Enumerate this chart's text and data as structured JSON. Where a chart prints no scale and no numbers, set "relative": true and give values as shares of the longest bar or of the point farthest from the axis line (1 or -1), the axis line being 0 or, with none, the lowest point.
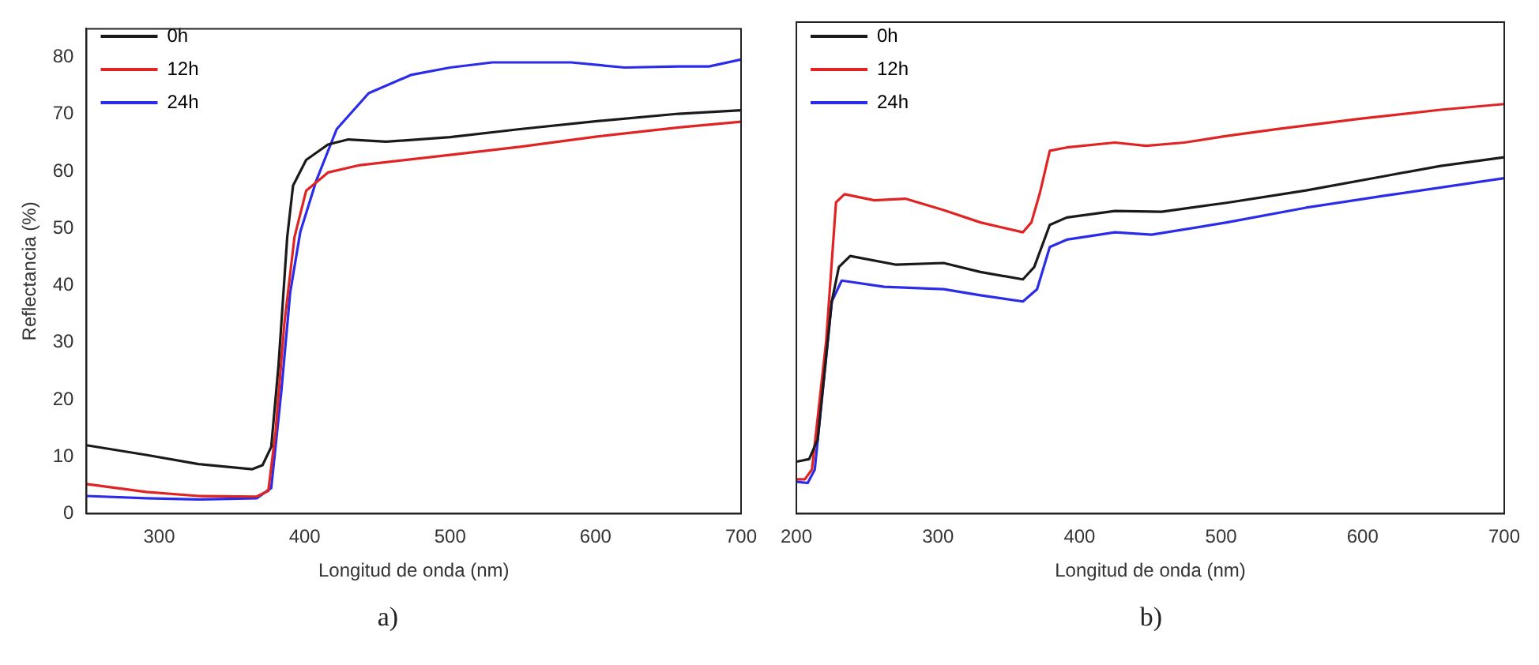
{
  "chart_data": [
    {
      "type": "line",
      "xlabel": "Longitud de onda (nm)",
      "ylabel": "Reflectancia (%)",
      "xlim": [
        250,
        700
      ],
      "xticks": [
        300,
        400,
        500,
        600,
        700
      ],
      "ylim": [
        0,
        85
      ],
      "yticks": [
        0,
        10,
        20,
        30,
        40,
        50,
        60,
        70,
        80
      ],
      "legend": "top left",
      "grid": false,
      "annotations": [
        "a)"
      ],
      "series": [
        {
          "name": "0h",
          "color": "#1a1a1a",
          "x": [
            250,
            291,
            327,
            364,
            371,
            377,
            382,
            388,
            392,
            401,
            416,
            430,
            456,
            500,
            548,
            601,
            657,
            700
          ],
          "values": [
            12,
            10.3,
            8.7,
            7.8,
            8.5,
            11.7,
            26,
            48.5,
            57.5,
            62,
            64.7,
            65.6,
            65.2,
            66,
            67.4,
            68.8,
            70.1,
            70.7
          ]
        },
        {
          "name": "12h",
          "color": "#e02424",
          "x": [
            250,
            291,
            327,
            367,
            375,
            380,
            386,
            393,
            401,
            416,
            438,
            500,
            548,
            601,
            657,
            700
          ],
          "values": [
            5.2,
            3.8,
            3.1,
            3,
            4,
            14.4,
            33.3,
            48.5,
            56.6,
            59.8,
            61.1,
            62.9,
            64.3,
            66.1,
            67.7,
            68.7
          ]
        },
        {
          "name": "24h",
          "color": "#2b2bea",
          "x": [
            250,
            291,
            327,
            367,
            377,
            384,
            390,
            397,
            408,
            422,
            444,
            473,
            500,
            529,
            583,
            620,
            657,
            678,
            700
          ],
          "values": [
            3.1,
            2.7,
            2.5,
            2.7,
            4.5,
            21.6,
            38.7,
            49.4,
            58.4,
            67.4,
            73.7,
            76.9,
            78.2,
            79.1,
            79.1,
            78.2,
            78.4,
            78.4,
            79.6
          ]
        }
      ]
    },
    {
      "type": "line",
      "xlabel": "Longitud de onda (nm)",
      "xlim": [
        200,
        700
      ],
      "xticks": [
        200,
        300,
        400,
        500,
        600,
        700
      ],
      "relative": true,
      "tick_labels": "x",
      "legend": "top left",
      "grid": false,
      "annotations": [
        "b)"
      ],
      "series": [
        {
          "name": "0h",
          "color": "#1a1a1a",
          "x": [
            200,
            209,
            215,
            225,
            230,
            238,
            270,
            304,
            330,
            360,
            368,
            379,
            391,
            425,
            458,
            504,
            560,
            617,
            655,
            700
          ],
          "values": [
            0.127,
            0.133,
            0.181,
            0.518,
            0.602,
            0.629,
            0.608,
            0.612,
            0.59,
            0.572,
            0.602,
            0.705,
            0.723,
            0.739,
            0.737,
            0.759,
            0.789,
            0.825,
            0.849,
            0.87
          ]
        },
        {
          "name": "12h",
          "color": "#e02424",
          "x": [
            200,
            206,
            211,
            221,
            228,
            234,
            255,
            277,
            304,
            330,
            360,
            366,
            372,
            379,
            391,
            425,
            447,
            474,
            504,
            542,
            598,
            655,
            700
          ],
          "values": [
            0.084,
            0.084,
            0.108,
            0.42,
            0.76,
            0.78,
            0.765,
            0.769,
            0.741,
            0.711,
            0.687,
            0.711,
            0.783,
            0.886,
            0.894,
            0.906,
            0.898,
            0.906,
            0.922,
            0.94,
            0.964,
            0.986,
            1
          ]
        },
        {
          "name": "24h",
          "color": "#2b2bea",
          "x": [
            200,
            208,
            213,
            225,
            232,
            262,
            304,
            330,
            360,
            370,
            379,
            391,
            425,
            451,
            504,
            560,
            617,
            700
          ],
          "values": [
            0.078,
            0.075,
            0.108,
            0.518,
            0.569,
            0.554,
            0.548,
            0.533,
            0.518,
            0.548,
            0.651,
            0.669,
            0.687,
            0.681,
            0.711,
            0.747,
            0.777,
            0.819
          ]
        }
      ]
    }
  ]
}
